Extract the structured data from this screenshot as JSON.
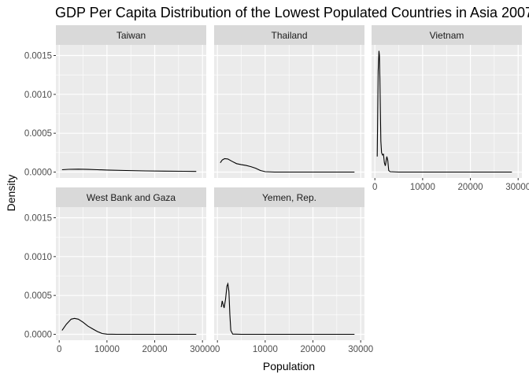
{
  "chart_data": {
    "type": "line",
    "title": "GDP Per Capita Distribution of the Lowest Populated Countries in Asia 2007",
    "xlabel": "Population",
    "ylabel": "Density",
    "xlim": [
      0,
      30000
    ],
    "ylim": [
      0,
      0.0016
    ],
    "x_ticks": [
      0,
      10000,
      20000,
      30000
    ],
    "x_tick_labels": [
      "0",
      "10000",
      "20000",
      "30000"
    ],
    "y_ticks": [
      0,
      0.0005,
      0.001,
      0.0015
    ],
    "y_tick_labels": [
      "0.0000",
      "0.0005",
      "0.0010",
      "0.0015"
    ],
    "grid": true,
    "facets": [
      {
        "name": "Taiwan",
        "points": [
          [
            600,
            3e-05
          ],
          [
            2000,
            3.5e-05
          ],
          [
            4000,
            3.8e-05
          ],
          [
            6000,
            3.4e-05
          ],
          [
            8000,
            3e-05
          ],
          [
            10000,
            2.6e-05
          ],
          [
            14000,
            2e-05
          ],
          [
            18000,
            1.5e-05
          ],
          [
            22000,
            1.2e-05
          ],
          [
            26000,
            1e-05
          ],
          [
            28700,
            8e-06
          ]
        ]
      },
      {
        "name": "Thailand",
        "points": [
          [
            600,
            0.00012
          ],
          [
            1000,
            0.000155
          ],
          [
            1500,
            0.000172
          ],
          [
            2200,
            0.000168
          ],
          [
            3000,
            0.00014
          ],
          [
            4000,
            0.000108
          ],
          [
            5000,
            9.5e-05
          ],
          [
            6000,
            8.5e-05
          ],
          [
            7000,
            7e-05
          ],
          [
            8000,
            5e-05
          ],
          [
            9000,
            2e-05
          ],
          [
            10000,
            5e-06
          ],
          [
            12000,
            5e-07
          ],
          [
            28700,
            0
          ]
        ]
      },
      {
        "name": "Vietnam",
        "points": [
          [
            500,
            0.0002
          ],
          [
            700,
            0.0013
          ],
          [
            850,
            0.00156
          ],
          [
            950,
            0.0015
          ],
          [
            1050,
            0.0012
          ],
          [
            1150,
            0.0008
          ],
          [
            1250,
            0.0004
          ],
          [
            1400,
            0.00025
          ],
          [
            1600,
            0.00022
          ],
          [
            1800,
            0.00023
          ],
          [
            2000,
            0.00012
          ],
          [
            2200,
            8e-05
          ],
          [
            2500,
            0.0002
          ],
          [
            2700,
            0.00015
          ],
          [
            2900,
            2e-05
          ],
          [
            3200,
            5e-06
          ],
          [
            5000,
            0
          ],
          [
            28700,
            0
          ]
        ]
      },
      {
        "name": "West Bank and Gaza",
        "points": [
          [
            600,
            5e-05
          ],
          [
            1500,
            0.00013
          ],
          [
            2500,
            0.000195
          ],
          [
            3200,
            0.000205
          ],
          [
            4000,
            0.000195
          ],
          [
            5000,
            0.000155
          ],
          [
            6000,
            0.000105
          ],
          [
            7000,
            7e-05
          ],
          [
            8000,
            3.5e-05
          ],
          [
            9000,
            1e-05
          ],
          [
            10000,
            2e-06
          ],
          [
            12000,
            0
          ],
          [
            28700,
            0
          ]
        ]
      },
      {
        "name": "Yemen, Rep.",
        "points": [
          [
            800,
            0.00035
          ],
          [
            1000,
            0.00043
          ],
          [
            1200,
            0.00038
          ],
          [
            1400,
            0.00034
          ],
          [
            1700,
            0.00045
          ],
          [
            2000,
            0.00062
          ],
          [
            2200,
            0.00065
          ],
          [
            2400,
            0.00055
          ],
          [
            2600,
            0.00025
          ],
          [
            2800,
            5e-05
          ],
          [
            3200,
            3e-06
          ],
          [
            5000,
            0
          ],
          [
            28700,
            0
          ]
        ]
      }
    ]
  }
}
